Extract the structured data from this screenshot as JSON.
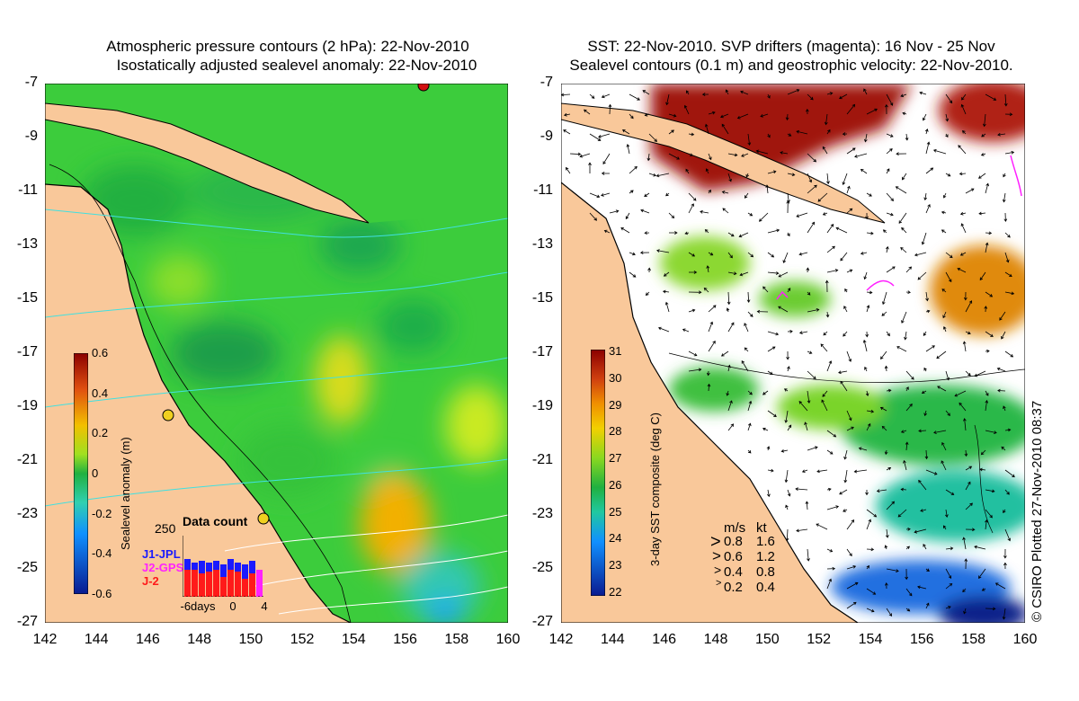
{
  "left_panel": {
    "title_line1": "Atmospheric pressure contours (2 hPa): 22-Nov-2010",
    "title_line2": "Isostatically adjusted sealevel anomaly: 22-Nov-2010",
    "lon_ticks": [
      "142",
      "144",
      "146",
      "148",
      "150",
      "152",
      "154",
      "156",
      "158",
      "160"
    ],
    "lat_ticks": [
      "-7",
      "-9",
      "-11",
      "-13",
      "-15",
      "-17",
      "-19",
      "-21",
      "-23",
      "-25",
      "-27"
    ],
    "colorbar": {
      "label": "Sealevel anomaly (m)",
      "ticks": [
        "0.6",
        "0.4",
        "0.2",
        "0",
        "-0.2",
        "-0.4",
        "-0.6"
      ]
    },
    "data_count": {
      "title": "Data count",
      "y_max": "250",
      "series": [
        {
          "name": "J1-JPL",
          "color": "#1a1aff"
        },
        {
          "name": "J2-GPS",
          "color": "#ff22ff"
        },
        {
          "name": "J-2",
          "color": "#ff1a1a"
        }
      ],
      "x_ticks": [
        "-6days",
        "0",
        "4"
      ]
    }
  },
  "right_panel": {
    "title_line1": "SST: 22-Nov-2010. SVP drifters (magenta): 16 Nov - 25 Nov",
    "title_line2": "Sealevel contours (0.1 m) and geostrophic velocity: 22-Nov-2010.",
    "lon_ticks": [
      "142",
      "144",
      "146",
      "148",
      "150",
      "152",
      "154",
      "156",
      "158",
      "160"
    ],
    "lat_ticks": [
      "-7",
      "-9",
      "-11",
      "-13",
      "-15",
      "-17",
      "-19",
      "-21",
      "-23",
      "-25",
      "-27"
    ],
    "colorbar": {
      "label": "3-day SST composite (deg C)",
      "ticks": [
        "31",
        "30",
        "29",
        "28",
        "27",
        "26",
        "25",
        "24",
        "23",
        "22"
      ]
    },
    "velocity_key": {
      "header_ms": "m/s",
      "header_kt": "kt",
      "rows": [
        {
          "ms": "0.8",
          "kt": "1.6"
        },
        {
          "ms": "0.6",
          "kt": "1.2"
        },
        {
          "ms": "0.4",
          "kt": "0.8"
        },
        {
          "ms": "0.2",
          "kt": "0.4"
        }
      ]
    }
  },
  "credit": "© CSIRO Plotted 27-Nov-2010 08:37",
  "colors": {
    "land": "#f9c89a",
    "sst_warm": "#a01810",
    "anomaly_green": "#3cc83c"
  }
}
